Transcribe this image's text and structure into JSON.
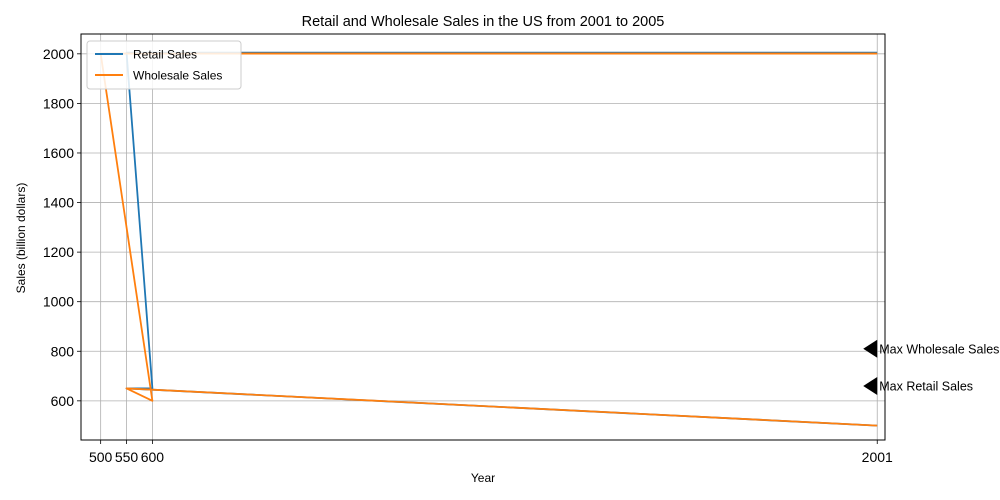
{
  "chart_data": {
    "type": "line",
    "title": "Retail and Wholesale Sales in the US from 2001 to 2005",
    "xlabel": "Year",
    "ylabel": "Sales (billion dollars)",
    "xlim": [
      462,
      2016
    ],
    "ylim": [
      442,
      2080
    ],
    "x_ticks": [
      500,
      550,
      600,
      2001
    ],
    "x_tick_labels": [
      "500",
      "550",
      "600",
      "2001"
    ],
    "y_ticks": [
      600,
      800,
      1000,
      1200,
      1400,
      1600,
      1800,
      2000
    ],
    "y_tick_labels": [
      "600",
      "800",
      "1000",
      "1200",
      "1400",
      "1600",
      "1800",
      "2000"
    ],
    "grid": true,
    "legend_position": "upper-left",
    "series": [
      {
        "name": "Retail Sales",
        "color": "#1f77b4",
        "points": [
          [
            2001,
            2005
          ],
          [
            550,
            2005
          ],
          [
            600,
            650
          ],
          [
            550,
            650
          ],
          [
            2001,
            500
          ]
        ]
      },
      {
        "name": "Wholesale Sales",
        "color": "#ff7f0e",
        "points": [
          [
            2001,
            2001
          ],
          [
            500,
            2001
          ],
          [
            600,
            600
          ],
          [
            550,
            650
          ],
          [
            600,
            645
          ],
          [
            2001,
            500
          ]
        ]
      }
    ],
    "annotations": [
      {
        "text": "Max Retail Sales",
        "x": 2001,
        "y": 660
      },
      {
        "text": "Max Wholesale Sales",
        "x": 2001,
        "y": 810
      }
    ]
  }
}
